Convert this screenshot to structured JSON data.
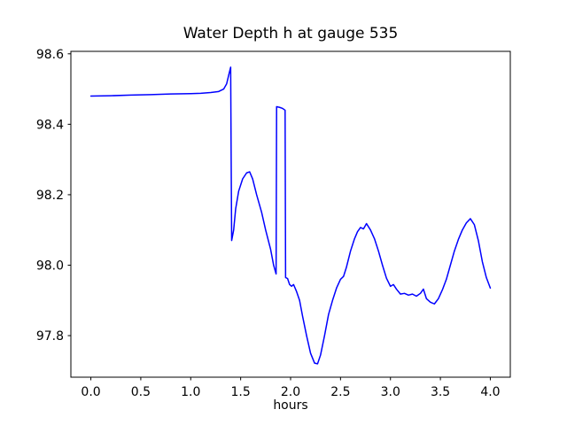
{
  "figure": {
    "background": "#ffffff",
    "axes_edge_color": "#000000"
  },
  "chart_data": {
    "type": "line",
    "title": "Water Depth h at gauge 535",
    "xlabel": "hours",
    "ylabel": "",
    "grid": false,
    "legend": "none",
    "line_color": "#0000ff",
    "xlim": [
      -0.2,
      4.2
    ],
    "ylim": [
      97.682,
      98.607
    ],
    "x_ticks": [
      "0.0",
      "0.5",
      "1.0",
      "1.5",
      "2.0",
      "2.5",
      "3.0",
      "3.5",
      "4.0"
    ],
    "y_ticks": [
      "97.8",
      "98.0",
      "98.2",
      "98.4",
      "98.6"
    ],
    "series": [
      {
        "name": "water-depth-h",
        "color": "#0000ff",
        "points": [
          [
            0.0,
            98.48
          ],
          [
            0.2,
            98.481
          ],
          [
            0.4,
            98.483
          ],
          [
            0.6,
            98.484
          ],
          [
            0.8,
            98.486
          ],
          [
            1.0,
            98.487
          ],
          [
            1.1,
            98.488
          ],
          [
            1.2,
            98.49
          ],
          [
            1.28,
            98.493
          ],
          [
            1.33,
            98.5
          ],
          [
            1.36,
            98.515
          ],
          [
            1.385,
            98.545
          ],
          [
            1.4,
            98.562
          ],
          [
            1.405,
            98.3
          ],
          [
            1.41,
            98.07
          ],
          [
            1.43,
            98.1
          ],
          [
            1.45,
            98.16
          ],
          [
            1.48,
            98.21
          ],
          [
            1.52,
            98.245
          ],
          [
            1.56,
            98.262
          ],
          [
            1.59,
            98.265
          ],
          [
            1.62,
            98.245
          ],
          [
            1.66,
            98.2
          ],
          [
            1.71,
            98.15
          ],
          [
            1.75,
            98.1
          ],
          [
            1.8,
            98.045
          ],
          [
            1.83,
            98.0
          ],
          [
            1.855,
            97.975
          ],
          [
            1.86,
            98.45
          ],
          [
            1.89,
            98.448
          ],
          [
            1.92,
            98.445
          ],
          [
            1.945,
            98.44
          ],
          [
            1.95,
            97.965
          ],
          [
            1.97,
            97.962
          ],
          [
            1.99,
            97.945
          ],
          [
            2.01,
            97.94
          ],
          [
            2.03,
            97.945
          ],
          [
            2.06,
            97.925
          ],
          [
            2.09,
            97.9
          ],
          [
            2.12,
            97.855
          ],
          [
            2.16,
            97.8
          ],
          [
            2.2,
            97.75
          ],
          [
            2.24,
            97.722
          ],
          [
            2.27,
            97.72
          ],
          [
            2.3,
            97.745
          ],
          [
            2.34,
            97.8
          ],
          [
            2.38,
            97.86
          ],
          [
            2.42,
            97.9
          ],
          [
            2.46,
            97.935
          ],
          [
            2.5,
            97.96
          ],
          [
            2.53,
            97.968
          ],
          [
            2.56,
            97.995
          ],
          [
            2.6,
            98.04
          ],
          [
            2.64,
            98.075
          ],
          [
            2.67,
            98.095
          ],
          [
            2.7,
            98.107
          ],
          [
            2.73,
            98.103
          ],
          [
            2.76,
            98.118
          ],
          [
            2.8,
            98.1
          ],
          [
            2.84,
            98.075
          ],
          [
            2.88,
            98.04
          ],
          [
            2.92,
            98.0
          ],
          [
            2.96,
            97.963
          ],
          [
            3.0,
            97.94
          ],
          [
            3.03,
            97.945
          ],
          [
            3.06,
            97.932
          ],
          [
            3.1,
            97.918
          ],
          [
            3.14,
            97.92
          ],
          [
            3.18,
            97.915
          ],
          [
            3.22,
            97.918
          ],
          [
            3.26,
            97.912
          ],
          [
            3.3,
            97.92
          ],
          [
            3.33,
            97.932
          ],
          [
            3.36,
            97.905
          ],
          [
            3.4,
            97.895
          ],
          [
            3.44,
            97.89
          ],
          [
            3.48,
            97.905
          ],
          [
            3.52,
            97.93
          ],
          [
            3.56,
            97.96
          ],
          [
            3.6,
            98.0
          ],
          [
            3.64,
            98.04
          ],
          [
            3.68,
            98.073
          ],
          [
            3.72,
            98.1
          ],
          [
            3.76,
            98.12
          ],
          [
            3.8,
            98.132
          ],
          [
            3.84,
            98.115
          ],
          [
            3.88,
            98.07
          ],
          [
            3.92,
            98.01
          ],
          [
            3.96,
            97.965
          ],
          [
            4.0,
            97.935
          ]
        ]
      }
    ]
  }
}
